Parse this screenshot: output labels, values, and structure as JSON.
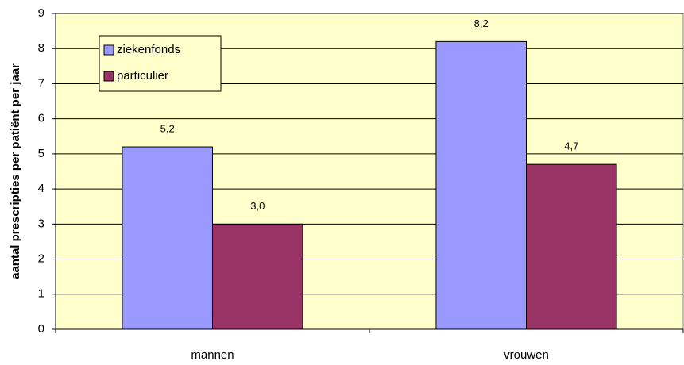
{
  "chart_data": {
    "type": "bar",
    "y_label": "aantal prescripties per patiënt per jaar",
    "categories": [
      "mannen",
      "vrouwen"
    ],
    "series": [
      {
        "name": "ziekenfonds",
        "color": "#9999ff",
        "values": [
          5.2,
          8.2
        ],
        "value_labels": [
          "5,2",
          "8,2"
        ]
      },
      {
        "name": "particulier",
        "color": "#993366",
        "values": [
          3.0,
          4.7
        ],
        "value_labels": [
          "3,0",
          "4,7"
        ]
      }
    ],
    "ylim": [
      0,
      9
    ],
    "yticks": [
      0,
      1,
      2,
      3,
      4,
      5,
      6,
      7,
      8,
      9
    ],
    "grid": true,
    "legend": "top-left",
    "plot_background": "#ffffcc"
  }
}
